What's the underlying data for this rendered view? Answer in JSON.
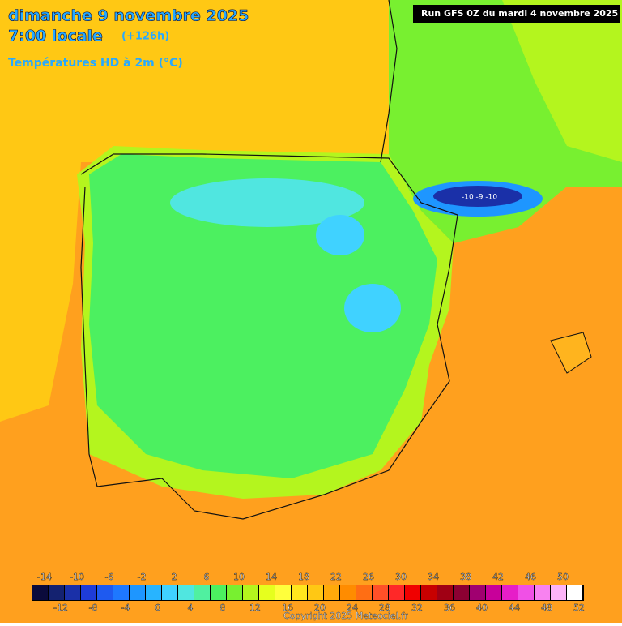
{
  "header": {
    "date": "dimanche 9 novembre 2025",
    "time": "7:00 locale",
    "lead": "(+126h)",
    "variable": "Températures HD à 2m (°C)",
    "run": "Run GFS 0Z du mardi 4 novembre 2025"
  },
  "annotation": "-10 -9 -10",
  "colorbar": {
    "ticks": [
      -14,
      -12,
      -10,
      -8,
      -6,
      -4,
      -2,
      0,
      2,
      4,
      6,
      8,
      10,
      12,
      14,
      16,
      18,
      20,
      22,
      24,
      26,
      28,
      30,
      32,
      34,
      36,
      38,
      40,
      42,
      44,
      46,
      48,
      50,
      52
    ],
    "colors": [
      "#0b0b3c",
      "#142270",
      "#1a30a8",
      "#1e3cd8",
      "#1e5af0",
      "#1e78ff",
      "#1e96ff",
      "#28b4ff",
      "#40d2ff",
      "#50e6e0",
      "#50f0a0",
      "#4cf060",
      "#78f030",
      "#b4f51e",
      "#e6ff1e",
      "#ffff3c",
      "#ffe61e",
      "#ffc814",
      "#ffaa0a",
      "#ff8c00",
      "#ff6e14",
      "#ff5028",
      "#ff2828",
      "#f00000",
      "#c80000",
      "#a00014",
      "#8c0032",
      "#a00070",
      "#c8009a",
      "#e61ec8",
      "#f050e6",
      "#f882f0",
      "#fcb4f8",
      "#ffffff"
    ]
  },
  "copyright": "Copyright 2025 Meteociel.fr"
}
